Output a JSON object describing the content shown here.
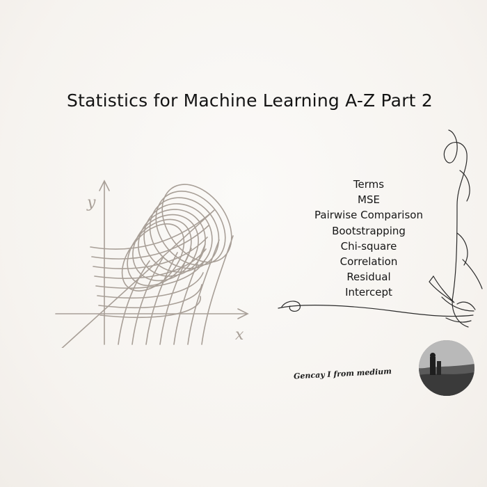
{
  "title": "Statistics for Machine Learning A-Z Part 2",
  "topics": [
    "Terms",
    "MSE",
    "Pairwise Comparison",
    "Bootstrapping",
    "Chi-square",
    "Correlation",
    "Residual",
    "Intercept"
  ],
  "author": "Gencay I from medium",
  "plot": {
    "y_label": "y",
    "x_label": "x"
  },
  "colors": {
    "sketch": "#a89f97",
    "text": "#161616",
    "vine": "#2a2a2a"
  },
  "icons": {
    "illustration": "regression-sketch-icon",
    "decoration": "vine-ornament-icon",
    "avatar": "author-avatar"
  }
}
